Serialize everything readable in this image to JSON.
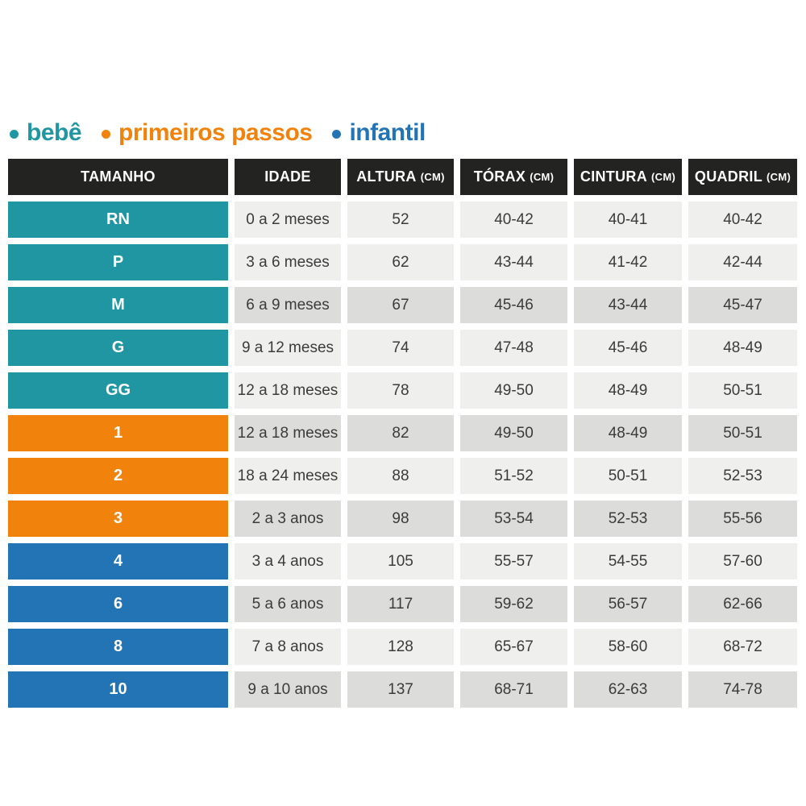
{
  "legend": {
    "items": [
      {
        "key": "bebe",
        "label": "bebê",
        "color": "#2196A3"
      },
      {
        "key": "primeiros-passos",
        "label": "primeiros passos",
        "color": "#F1830D"
      },
      {
        "key": "infantil",
        "label": "infantil",
        "color": "#2374B5"
      }
    ]
  },
  "colors": {
    "header_bg": "#232321",
    "row_light": "#EFEFED",
    "row_dark": "#DCDCDA",
    "cell_text": "#3B3B39",
    "group_bebe": "#2196A3",
    "group_primeiros_passos": "#F1830D",
    "group_infantil": "#2374B5"
  },
  "table": {
    "header": [
      {
        "key": "tamanho",
        "label": "TAMANHO",
        "unit": ""
      },
      {
        "key": "idade",
        "label": "IDADE",
        "unit": ""
      },
      {
        "key": "altura",
        "label": "ALTURA",
        "unit": "(CM)"
      },
      {
        "key": "torax",
        "label": "TÓRAX",
        "unit": "(CM)"
      },
      {
        "key": "cintura",
        "label": "CINTURA",
        "unit": "(CM)"
      },
      {
        "key": "quadril",
        "label": "QUADRIL",
        "unit": "(CM)"
      }
    ],
    "rows": [
      {
        "size": "RN",
        "group": "bebe",
        "shade": "light",
        "idade": "0 a 2 meses",
        "altura": "52",
        "torax": "40-42",
        "cintura": "40-41",
        "quadril": "40-42"
      },
      {
        "size": "P",
        "group": "bebe",
        "shade": "light",
        "idade": "3 a 6 meses",
        "altura": "62",
        "torax": "43-44",
        "cintura": "41-42",
        "quadril": "42-44"
      },
      {
        "size": "M",
        "group": "bebe",
        "shade": "dark",
        "idade": "6 a 9 meses",
        "altura": "67",
        "torax": "45-46",
        "cintura": "43-44",
        "quadril": "45-47"
      },
      {
        "size": "G",
        "group": "bebe",
        "shade": "light",
        "idade": "9 a 12 meses",
        "altura": "74",
        "torax": "47-48",
        "cintura": "45-46",
        "quadril": "48-49"
      },
      {
        "size": "GG",
        "group": "bebe",
        "shade": "light",
        "idade": "12 a 18 meses",
        "altura": "78",
        "torax": "49-50",
        "cintura": "48-49",
        "quadril": "50-51"
      },
      {
        "size": "1",
        "group": "primeiros-passos",
        "shade": "dark",
        "idade": "12 a 18 meses",
        "altura": "82",
        "torax": "49-50",
        "cintura": "48-49",
        "quadril": "50-51"
      },
      {
        "size": "2",
        "group": "primeiros-passos",
        "shade": "light",
        "idade": "18 a 24 meses",
        "altura": "88",
        "torax": "51-52",
        "cintura": "50-51",
        "quadril": "52-53"
      },
      {
        "size": "3",
        "group": "primeiros-passos",
        "shade": "dark",
        "idade": "2 a 3 anos",
        "altura": "98",
        "torax": "53-54",
        "cintura": "52-53",
        "quadril": "55-56"
      },
      {
        "size": "4",
        "group": "infantil",
        "shade": "light",
        "idade": "3 a 4 anos",
        "altura": "105",
        "torax": "55-57",
        "cintura": "54-55",
        "quadril": "57-60"
      },
      {
        "size": "6",
        "group": "infantil",
        "shade": "dark",
        "idade": "5 a 6 anos",
        "altura": "117",
        "torax": "59-62",
        "cintura": "56-57",
        "quadril": "62-66"
      },
      {
        "size": "8",
        "group": "infantil",
        "shade": "light",
        "idade": "7 a 8 anos",
        "altura": "128",
        "torax": "65-67",
        "cintura": "58-60",
        "quadril": "68-72"
      },
      {
        "size": "10",
        "group": "infantil",
        "shade": "dark",
        "idade": "9 a 10 anos",
        "altura": "137",
        "torax": "68-71",
        "cintura": "62-63",
        "quadril": "74-78"
      }
    ]
  },
  "chart_data": {
    "type": "table",
    "title": "",
    "legend_entries": [
      "bebê",
      "primeiros passos",
      "infantil"
    ],
    "columns": [
      "TAMANHO",
      "IDADE",
      "ALTURA (CM)",
      "TÓRAX (CM)",
      "CINTURA (CM)",
      "QUADRIL (CM)"
    ],
    "rows": [
      [
        "RN",
        "0 a 2 meses",
        "52",
        "40-42",
        "40-41",
        "40-42"
      ],
      [
        "P",
        "3 a 6 meses",
        "62",
        "43-44",
        "41-42",
        "42-44"
      ],
      [
        "M",
        "6 a 9 meses",
        "67",
        "45-46",
        "43-44",
        "45-47"
      ],
      [
        "G",
        "9 a 12 meses",
        "74",
        "47-48",
        "45-46",
        "48-49"
      ],
      [
        "GG",
        "12 a 18 meses",
        "78",
        "49-50",
        "48-49",
        "50-51"
      ],
      [
        "1",
        "12 a 18 meses",
        "82",
        "49-50",
        "48-49",
        "50-51"
      ],
      [
        "2",
        "18 a 24 meses",
        "88",
        "51-52",
        "50-51",
        "52-53"
      ],
      [
        "3",
        "2 a 3 anos",
        "98",
        "53-54",
        "52-53",
        "55-56"
      ],
      [
        "4",
        "3 a 4 anos",
        "105",
        "55-57",
        "54-55",
        "57-60"
      ],
      [
        "6",
        "5 a 6 anos",
        "117",
        "59-62",
        "56-57",
        "62-66"
      ],
      [
        "8",
        "7 a 8 anos",
        "128",
        "65-67",
        "58-60",
        "68-72"
      ],
      [
        "10",
        "9 a 10 anos",
        "137",
        "68-71",
        "62-63",
        "74-78"
      ]
    ],
    "row_groups": [
      "bebê",
      "bebê",
      "bebê",
      "bebê",
      "bebê",
      "primeiros passos",
      "primeiros passos",
      "primeiros passos",
      "infantil",
      "infantil",
      "infantil",
      "infantil"
    ]
  }
}
